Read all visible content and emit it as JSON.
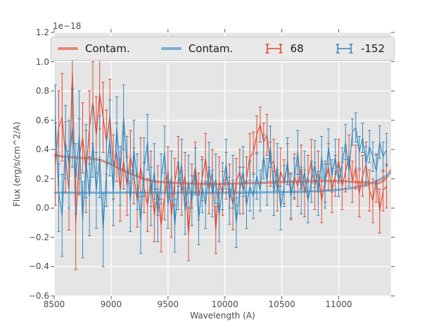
{
  "figure": {
    "offset_label": "1e−18",
    "xlabel": "Wavelength (A)",
    "ylabel": "Flux (erg/s/cm^2/A)"
  },
  "legend": {
    "items": [
      {
        "label": "Contam.",
        "type": "line",
        "color": "#e3887a"
      },
      {
        "label": "Contam.",
        "type": "line",
        "color": "#7bafd4"
      },
      {
        "label": "68",
        "type": "errorbar",
        "color": "#e24a33"
      },
      {
        "label": "-152",
        "type": "errorbar",
        "color": "#348abd"
      }
    ]
  },
  "chart_data": {
    "type": "line",
    "title": "",
    "xlabel": "Wavelength (A)",
    "ylabel": "Flux (erg/s/cm^2/A)",
    "y_offset": "1e−18",
    "xlim": [
      8500,
      11460
    ],
    "ylim": [
      -0.6,
      1.2
    ],
    "xticks": [
      8500,
      9000,
      9500,
      10000,
      10500,
      11000
    ],
    "xtick_labels": [
      "8500",
      "9000",
      "9500",
      "10000",
      "10500",
      "11000"
    ],
    "yticks": [
      1.2,
      1.0,
      0.8,
      0.6,
      0.4,
      0.2,
      0.0,
      -0.2,
      -0.4,
      -0.6
    ],
    "ytick_labels": [
      "1.2",
      "1.0",
      "0.8",
      "0.6",
      "0.4",
      "0.2",
      "0.0",
      "−0.2",
      "−0.4",
      "−0.6"
    ],
    "grid": true,
    "background": "#e5e5e5",
    "grid_color": "#ffffff",
    "legend_position": "upper-center-full-width",
    "series": [
      {
        "name": "Contam.",
        "type": "line",
        "color": "#e3887a",
        "x": [
          8500,
          8600,
          8700,
          8800,
          8900,
          9000,
          9100,
          9200,
          9300,
          9400,
          9500,
          9600,
          9700,
          9800,
          9900,
          10000,
          10100,
          10200,
          10300,
          10400,
          10500,
          10600,
          10700,
          10800,
          10900,
          11000,
          11100,
          11200,
          11300,
          11350,
          11400,
          11430,
          11460
        ],
        "y": [
          0.36,
          0.35,
          0.345,
          0.34,
          0.33,
          0.3,
          0.26,
          0.225,
          0.195,
          0.18,
          0.175,
          0.17,
          0.168,
          0.165,
          0.165,
          0.165,
          0.168,
          0.17,
          0.172,
          0.175,
          0.178,
          0.18,
          0.182,
          0.185,
          0.185,
          0.185,
          0.18,
          0.175,
          0.17,
          0.17,
          0.19,
          0.22,
          0.26
        ]
      },
      {
        "name": "Contam.",
        "type": "line",
        "color": "#7bafd4",
        "x": [
          8500,
          9000,
          9500,
          10000,
          10300,
          10600,
          10800,
          11000,
          11100,
          11200,
          11300,
          11400,
          11460
        ],
        "y": [
          0.105,
          0.105,
          0.105,
          0.105,
          0.107,
          0.11,
          0.115,
          0.125,
          0.135,
          0.15,
          0.175,
          0.21,
          0.245
        ]
      },
      {
        "name": "68",
        "type": "errorbar",
        "color": "#e24a33",
        "x": [
          8510,
          8540,
          8570,
          8600,
          8630,
          8660,
          8690,
          8720,
          8750,
          8780,
          8810,
          8840,
          8870,
          8900,
          8930,
          8960,
          8990,
          9020,
          9050,
          9080,
          9110,
          9140,
          9170,
          9200,
          9230,
          9260,
          9290,
          9320,
          9350,
          9380,
          9410,
          9440,
          9470,
          9500,
          9530,
          9560,
          9590,
          9620,
          9650,
          9680,
          9710,
          9740,
          9770,
          9800,
          9830,
          9860,
          9890,
          9920,
          9950,
          9980,
          10010,
          10040,
          10070,
          10100,
          10130,
          10160,
          10190,
          10220,
          10250,
          10280,
          10310,
          10340,
          10370,
          10400,
          10430,
          10460,
          10490,
          10520,
          10550,
          10580,
          10610,
          10640,
          10670,
          10700,
          10730,
          10760,
          10790,
          10820,
          10850,
          10880,
          10910,
          10940,
          10970,
          11000,
          11030,
          11060,
          11090,
          11120,
          11150,
          11180,
          11210,
          11240,
          11270,
          11300,
          11330,
          11360,
          11390,
          11420
        ],
        "y": [
          0.3,
          0.55,
          0.62,
          0.35,
          0.12,
          0.93,
          -0.1,
          0.35,
          0.48,
          0.25,
          0.55,
          0.72,
          0.5,
          0.78,
          0.62,
          0.45,
          0.63,
          0.28,
          0.38,
          0.12,
          0.32,
          0.15,
          0.35,
          0.22,
          0.05,
          0.28,
          0.14,
          0.02,
          0.2,
          -0.05,
          0.12,
          -0.12,
          0.08,
          0.25,
          -0.05,
          0.18,
          0.32,
          0.1,
          0.22,
          -0.18,
          0.15,
          0.28,
          0.08,
          0.2,
          0.34,
          0.12,
          0.25,
          -0.15,
          0.18,
          0.1,
          0.22,
          0.15,
          0.02,
          0.18,
          0.25,
          0.12,
          0.2,
          0.35,
          0.38,
          0.5,
          0.57,
          0.45,
          0.5,
          0.3,
          0.32,
          0.12,
          0.25,
          0.18,
          0.3,
          0.08,
          0.22,
          0.15,
          0.28,
          0.1,
          0.22,
          0.32,
          0.15,
          0.25,
          0.05,
          0.18,
          0.28,
          0.12,
          0.22,
          0.32,
          0.15,
          0.25,
          0.35,
          0.18,
          0.28,
          0.1,
          0.22,
          0.3,
          0.12,
          0.05,
          0.2,
          -0.02,
          0.12,
          0.15
        ],
        "yerr": [
          0.28,
          0.25,
          0.3,
          0.24,
          0.27,
          0.12,
          0.32,
          0.26,
          0.24,
          0.28,
          0.25,
          0.28,
          0.26,
          0.24,
          0.24,
          0.22,
          0.25,
          0.22,
          0.2,
          0.21,
          0.19,
          0.2,
          0.18,
          0.19,
          0.18,
          0.2,
          0.17,
          0.18,
          0.19,
          0.18,
          0.17,
          0.18,
          0.16,
          0.17,
          0.15,
          0.16,
          0.17,
          0.15,
          0.16,
          0.18,
          0.15,
          0.17,
          0.16,
          0.15,
          0.17,
          0.16,
          0.15,
          0.16,
          0.17,
          0.15,
          0.16,
          0.15,
          0.17,
          0.16,
          0.15,
          0.16,
          0.15,
          0.16,
          0.14,
          0.13,
          0.12,
          0.13,
          0.14,
          0.15,
          0.15,
          0.14,
          0.16,
          0.15,
          0.14,
          0.16,
          0.15,
          0.14,
          0.15,
          0.16,
          0.14,
          0.15,
          0.16,
          0.14,
          0.15,
          0.14,
          0.16,
          0.15,
          0.14,
          0.15,
          0.16,
          0.14,
          0.15,
          0.14,
          0.15,
          0.16,
          0.14,
          0.15,
          0.14,
          0.15,
          0.16,
          0.15,
          0.14,
          0.15
        ]
      },
      {
        "name": "-152",
        "type": "errorbar",
        "color": "#348abd",
        "x": [
          8510,
          8540,
          8570,
          8600,
          8630,
          8660,
          8690,
          8720,
          8750,
          8780,
          8810,
          8840,
          8870,
          8900,
          8930,
          8960,
          8990,
          9020,
          9050,
          9080,
          9110,
          9140,
          9170,
          9200,
          9230,
          9260,
          9290,
          9320,
          9350,
          9380,
          9410,
          9440,
          9470,
          9500,
          9530,
          9560,
          9590,
          9620,
          9650,
          9680,
          9710,
          9740,
          9770,
          9800,
          9830,
          9860,
          9890,
          9920,
          9950,
          9980,
          10010,
          10040,
          10070,
          10100,
          10130,
          10160,
          10190,
          10220,
          10250,
          10280,
          10310,
          10340,
          10370,
          10400,
          10430,
          10460,
          10490,
          10520,
          10550,
          10580,
          10610,
          10640,
          10670,
          10700,
          10730,
          10760,
          10790,
          10820,
          10850,
          10880,
          10910,
          10940,
          10970,
          11000,
          11030,
          11060,
          11090,
          11120,
          11150,
          11180,
          11210,
          11240,
          11270,
          11300,
          11330,
          11360,
          11390,
          11420
        ],
        "y": [
          0.62,
          0.1,
          -0.05,
          0.45,
          0.3,
          0.55,
          0.2,
          0.5,
          -0.08,
          0.32,
          0.08,
          0.45,
          0.12,
          0.35,
          -0.15,
          0.25,
          0.48,
          0.1,
          0.55,
          0.22,
          0.62,
          0.3,
          0.05,
          0.4,
          0.18,
          -0.1,
          0.28,
          0.45,
          0.08,
          0.25,
          -0.05,
          0.2,
          0.38,
          0.02,
          0.22,
          -0.12,
          0.15,
          0.3,
          -0.02,
          0.18,
          0.05,
          0.25,
          -0.08,
          0.15,
          0.02,
          0.28,
          0.1,
          0.2,
          -0.05,
          0.15,
          0.3,
          0.05,
          0.18,
          -0.1,
          0.12,
          0.25,
          0.02,
          0.15,
          0.08,
          0.22,
          0.12,
          0.35,
          0.18,
          0.42,
          0.1,
          0.28,
          0.0,
          0.15,
          0.32,
          0.08,
          0.2,
          0.38,
          0.12,
          0.25,
          0.05,
          0.18,
          0.3,
          0.1,
          0.35,
          0.15,
          0.42,
          0.22,
          0.35,
          0.18,
          0.3,
          0.45,
          0.25,
          0.52,
          0.55,
          0.38,
          0.48,
          0.3,
          0.42,
          0.35,
          0.25,
          0.45,
          0.35,
          0.4
        ],
        "yerr": [
          0.22,
          0.26,
          0.28,
          0.25,
          0.3,
          0.27,
          0.24,
          0.3,
          0.26,
          0.25,
          0.27,
          0.24,
          0.26,
          0.28,
          0.25,
          0.24,
          0.26,
          0.22,
          0.21,
          0.2,
          0.22,
          0.19,
          0.21,
          0.2,
          0.19,
          0.21,
          0.2,
          0.19,
          0.2,
          0.19,
          0.18,
          0.17,
          0.18,
          0.16,
          0.17,
          0.18,
          0.16,
          0.17,
          0.16,
          0.18,
          0.17,
          0.16,
          0.17,
          0.18,
          0.16,
          0.17,
          0.16,
          0.17,
          0.18,
          0.16,
          0.17,
          0.16,
          0.18,
          0.17,
          0.16,
          0.17,
          0.16,
          0.17,
          0.15,
          0.16,
          0.14,
          0.15,
          0.16,
          0.14,
          0.15,
          0.16,
          0.15,
          0.14,
          0.16,
          0.15,
          0.14,
          0.15,
          0.16,
          0.14,
          0.15,
          0.14,
          0.16,
          0.15,
          0.14,
          0.15,
          0.12,
          0.11,
          0.12,
          0.1,
          0.11,
          0.12,
          0.1,
          0.09,
          0.1,
          0.11,
          0.1,
          0.12,
          0.11,
          0.1,
          0.12,
          0.11,
          0.1,
          0.11
        ]
      }
    ]
  }
}
